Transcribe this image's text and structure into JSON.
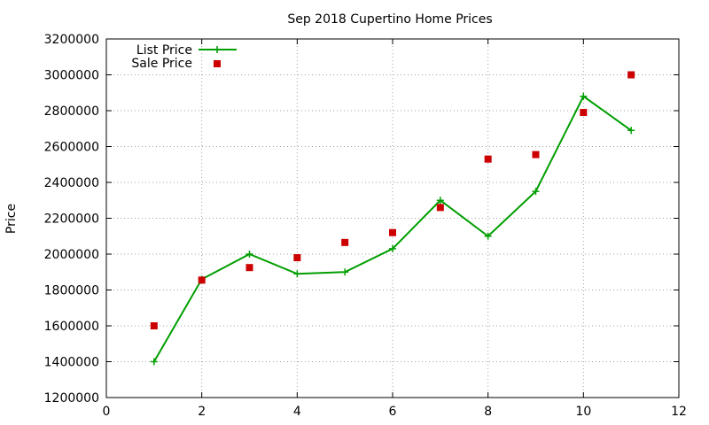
{
  "chart_data": {
    "type": "line",
    "title": "Sep 2018 Cupertino Home Prices",
    "xlabel": "",
    "ylabel": "Price",
    "xlim": [
      0,
      12
    ],
    "ylim": [
      1200000,
      3200000
    ],
    "x_ticks": [
      0,
      2,
      4,
      6,
      8,
      10,
      12
    ],
    "y_ticks": [
      1200000,
      1400000,
      1600000,
      1800000,
      2000000,
      2200000,
      2400000,
      2600000,
      2800000,
      3000000,
      3200000
    ],
    "x_tick_labels": [
      "0",
      "2",
      "4",
      "6",
      "8",
      "10",
      "12"
    ],
    "y_tick_labels": [
      "1200000",
      "1400000",
      "1600000",
      "1800000",
      "2000000",
      "2200000",
      "2400000",
      "2600000",
      "2800000",
      "3000000",
      "3200000"
    ],
    "grid": true,
    "legend_position": "top-left",
    "x": [
      1,
      2,
      3,
      4,
      5,
      6,
      7,
      8,
      9,
      10,
      11
    ],
    "series": [
      {
        "name": "List Price",
        "style": "linespoints",
        "marker": "plus",
        "color": "#009e00",
        "values": [
          1400000,
          1860000,
          2000000,
          1890000,
          1900000,
          2030000,
          2300000,
          2100000,
          2350000,
          2880000,
          2690000
        ]
      },
      {
        "name": "Sale Price",
        "style": "points",
        "marker": "square",
        "color": "#cc0000",
        "values": [
          1600000,
          1855000,
          1925000,
          1980000,
          2065000,
          2120000,
          2260000,
          2530000,
          2555000,
          2790000,
          3000000
        ]
      }
    ]
  }
}
